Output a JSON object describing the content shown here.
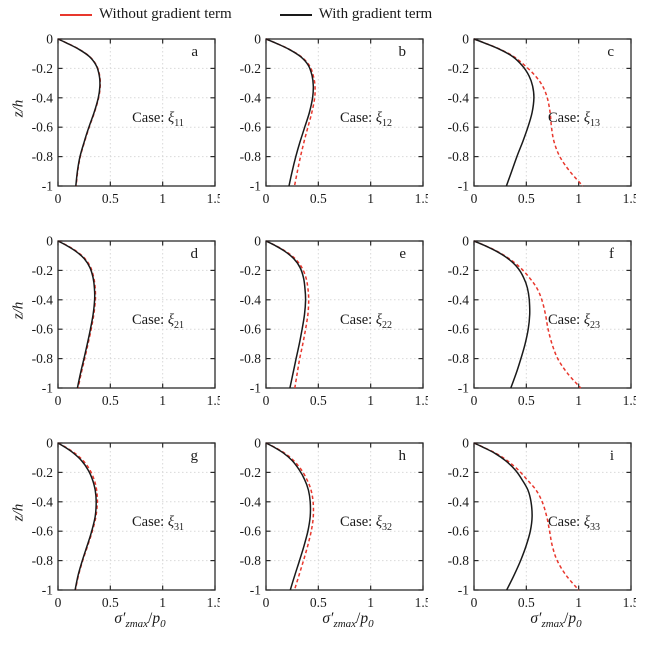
{
  "legend": {
    "items": [
      {
        "label": "Without gradient term",
        "color": "#e8372d"
      },
      {
        "label": "With gradient term",
        "color": "#1a1a1a"
      }
    ]
  },
  "colors": {
    "without": "#e8372d",
    "with": "#1a1a1a",
    "grid": "#d9d9d9",
    "axis": "#2b2b2b"
  },
  "chart_data": {
    "type": "line",
    "grid": true,
    "legend_position": "top",
    "xlim": [
      0,
      1.5
    ],
    "ylim": [
      -1,
      0
    ],
    "xticks": [
      0,
      0.5,
      1,
      1.5
    ],
    "yticks": [
      0,
      -0.2,
      -0.4,
      -0.6,
      -0.8,
      -1
    ],
    "xtick_labels": [
      "0",
      "0.5",
      "1",
      "1.5"
    ],
    "ytick_labels": [
      "0",
      "-0.2",
      "-0.4",
      "-0.6",
      "-0.8",
      "-1"
    ],
    "ylabel": "z/h",
    "xlabel": {
      "sigma": "σ′",
      "sub1": "zmax",
      "slash": "/",
      "pvar": "p",
      "sub2": "0"
    },
    "z": [
      0,
      -0.03,
      -0.07,
      -0.12,
      -0.18,
      -0.25,
      -0.32,
      -0.4,
      -0.5,
      -0.6,
      -0.7,
      -0.8,
      -0.9,
      -1.0
    ],
    "panels": [
      {
        "letter": "a",
        "case_prefix": "Case: ",
        "case_symbol": "ξ",
        "case_sub": "11",
        "without": [
          0,
          0.092,
          0.203,
          0.303,
          0.368,
          0.398,
          0.403,
          0.388,
          0.348,
          0.298,
          0.253,
          0.213,
          0.188,
          0.173
        ],
        "with": [
          0,
          0.09,
          0.2,
          0.3,
          0.365,
          0.395,
          0.4,
          0.385,
          0.345,
          0.295,
          0.25,
          0.21,
          0.185,
          0.17
        ]
      },
      {
        "letter": "b",
        "case_prefix": "Case: ",
        "case_symbol": "ξ",
        "case_sub": "12",
        "without": [
          0,
          0.1,
          0.222,
          0.335,
          0.415,
          0.452,
          0.468,
          0.465,
          0.438,
          0.4,
          0.363,
          0.33,
          0.3,
          0.272
        ],
        "with": [
          0,
          0.1,
          0.22,
          0.33,
          0.405,
          0.44,
          0.452,
          0.445,
          0.415,
          0.37,
          0.325,
          0.285,
          0.25,
          0.22
        ]
      },
      {
        "letter": "c",
        "case_prefix": "Case: ",
        "case_symbol": "ξ",
        "case_sub": "13",
        "without": [
          0,
          0.112,
          0.25,
          0.38,
          0.485,
          0.585,
          0.655,
          0.7,
          0.727,
          0.74,
          0.765,
          0.82,
          0.915,
          1.04
        ],
        "with": [
          0,
          0.11,
          0.245,
          0.37,
          0.46,
          0.525,
          0.56,
          0.572,
          0.555,
          0.515,
          0.465,
          0.41,
          0.36,
          0.31
        ]
      },
      {
        "letter": "d",
        "case_prefix": "Case: ",
        "case_symbol": "ξ",
        "case_sub": "21",
        "without": [
          0,
          0.085,
          0.177,
          0.257,
          0.312,
          0.342,
          0.355,
          0.357,
          0.342,
          0.317,
          0.287,
          0.255,
          0.222,
          0.192
        ],
        "with": [
          0,
          0.08,
          0.17,
          0.25,
          0.305,
          0.335,
          0.348,
          0.35,
          0.335,
          0.31,
          0.28,
          0.248,
          0.215,
          0.185
        ]
      },
      {
        "letter": "e",
        "case_prefix": "Case: ",
        "case_symbol": "ξ",
        "case_sub": "22",
        "without": [
          0,
          0.088,
          0.187,
          0.277,
          0.342,
          0.382,
          0.4,
          0.408,
          0.4,
          0.378,
          0.352,
          0.322,
          0.298,
          0.275
        ],
        "with": [
          0,
          0.085,
          0.18,
          0.265,
          0.325,
          0.358,
          0.372,
          0.378,
          0.368,
          0.345,
          0.318,
          0.288,
          0.258,
          0.228
        ]
      },
      {
        "letter": "f",
        "case_prefix": "Case: ",
        "case_symbol": "ξ",
        "case_sub": "23",
        "without": [
          0,
          0.1,
          0.22,
          0.335,
          0.44,
          0.53,
          0.6,
          0.648,
          0.683,
          0.708,
          0.745,
          0.8,
          0.893,
          1.02
        ],
        "with": [
          0,
          0.1,
          0.215,
          0.325,
          0.415,
          0.475,
          0.51,
          0.528,
          0.532,
          0.518,
          0.488,
          0.448,
          0.403,
          0.352
        ]
      },
      {
        "letter": "g",
        "case_prefix": "Case: ",
        "case_symbol": "ξ",
        "case_sub": "31",
        "without": [
          0,
          0.076,
          0.162,
          0.24,
          0.302,
          0.346,
          0.369,
          0.376,
          0.362,
          0.328,
          0.283,
          0.236,
          0.196,
          0.166
        ],
        "with": [
          0,
          0.07,
          0.15,
          0.225,
          0.285,
          0.33,
          0.355,
          0.365,
          0.355,
          0.322,
          0.278,
          0.232,
          0.192,
          0.163
        ]
      },
      {
        "letter": "h",
        "case_prefix": "Case: ",
        "case_symbol": "ξ",
        "case_sub": "32",
        "without": [
          0,
          0.085,
          0.18,
          0.265,
          0.335,
          0.392,
          0.43,
          0.45,
          0.452,
          0.432,
          0.398,
          0.358,
          0.315,
          0.272
        ],
        "with": [
          0,
          0.08,
          0.17,
          0.25,
          0.315,
          0.37,
          0.405,
          0.422,
          0.422,
          0.4,
          0.363,
          0.32,
          0.275,
          0.232
        ]
      },
      {
        "letter": "i",
        "case_prefix": "Case: ",
        "case_symbol": "ξ",
        "case_sub": "33",
        "without": [
          0,
          0.093,
          0.208,
          0.318,
          0.418,
          0.508,
          0.592,
          0.652,
          0.695,
          0.722,
          0.748,
          0.795,
          0.88,
          1.0
        ],
        "with": [
          0,
          0.09,
          0.2,
          0.3,
          0.39,
          0.46,
          0.515,
          0.545,
          0.555,
          0.538,
          0.498,
          0.445,
          0.382,
          0.312
        ]
      }
    ]
  }
}
